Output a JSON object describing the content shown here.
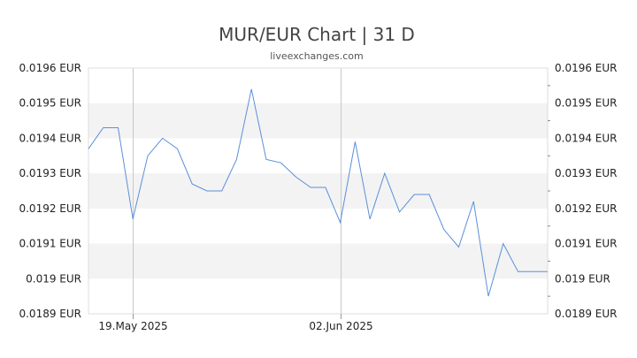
{
  "chart_data": {
    "type": "line",
    "title": "MUR/EUR Chart | 31 D",
    "subtitle": "liveexchanges.com",
    "xlabel": "",
    "ylabel": "",
    "ylim": [
      0.0189,
      0.0196
    ],
    "y_tick_values": [
      0.0196,
      0.0195,
      0.0194,
      0.0193,
      0.0192,
      0.0191,
      0.019,
      0.0189
    ],
    "y_tick_labels": [
      "0.0196 EUR",
      "0.0195 EUR",
      "0.0194 EUR",
      "0.0193 EUR",
      "0.0192 EUR",
      "0.0191 EUR",
      "0.019 EUR",
      "0.0189 EUR"
    ],
    "x_tick_labels": [
      "19.May 2025",
      "02.Jun 2025"
    ],
    "x_tick_dates": [
      "2025-05-19",
      "2025-06-02"
    ],
    "grid": "alternating horizontal bands",
    "line_color": "#5b8fd9",
    "band_color": "#f3f3f3",
    "dates": [
      "2025-05-16",
      "2025-05-17",
      "2025-05-18",
      "2025-05-19",
      "2025-05-20",
      "2025-05-21",
      "2025-05-22",
      "2025-05-23",
      "2025-05-24",
      "2025-05-25",
      "2025-05-26",
      "2025-05-27",
      "2025-05-28",
      "2025-05-29",
      "2025-05-30",
      "2025-05-31",
      "2025-06-01",
      "2025-06-02",
      "2025-06-03",
      "2025-06-04",
      "2025-06-05",
      "2025-06-06",
      "2025-06-07",
      "2025-06-08",
      "2025-06-09",
      "2025-06-10",
      "2025-06-11",
      "2025-06-12",
      "2025-06-13",
      "2025-06-14",
      "2025-06-15",
      "2025-06-16"
    ],
    "values": [
      0.01937,
      0.01943,
      0.01943,
      0.01917,
      0.01935,
      0.0194,
      0.01937,
      0.01927,
      0.01925,
      0.01925,
      0.01934,
      0.01954,
      0.01934,
      0.01933,
      0.01929,
      0.01926,
      0.01926,
      0.01916,
      0.01939,
      0.01917,
      0.0193,
      0.01919,
      0.01924,
      0.01924,
      0.01914,
      0.01909,
      0.01922,
      0.01895,
      0.0191,
      0.01902,
      0.01902,
      0.01902
    ]
  }
}
